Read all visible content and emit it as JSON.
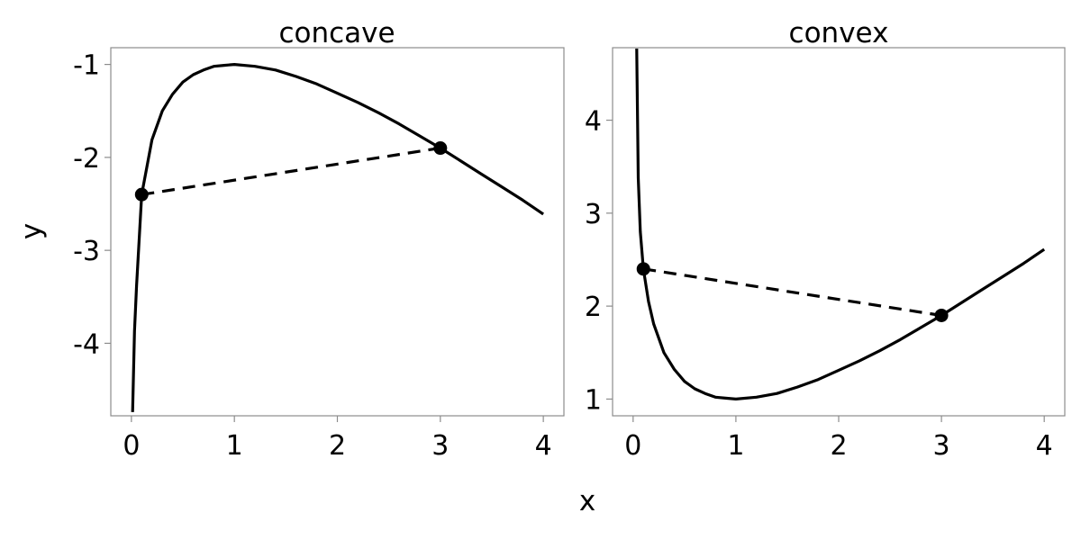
{
  "chart_data": [
    {
      "type": "line",
      "title": "concave",
      "xlim": [
        -0.2,
        4.2
      ],
      "ylim": [
        -4.78,
        -0.82
      ],
      "x_ticks": [
        0,
        1,
        2,
        3,
        4
      ],
      "y_ticks": [
        -4,
        -3,
        -2,
        -1
      ],
      "series": [
        {
          "style": "solid",
          "x": [
            0.012,
            0.03,
            0.05,
            0.1,
            0.2,
            0.3,
            0.4,
            0.5,
            0.6,
            0.7,
            0.8,
            0.9,
            1.0,
            1.2,
            1.4,
            1.6,
            1.8,
            2.0,
            2.2,
            2.4,
            2.6,
            2.8,
            3.0,
            3.2,
            3.4,
            3.6,
            3.8,
            4.0
          ],
          "y": [
            -4.74,
            -3.87,
            -3.38,
            -2.4,
            -1.81,
            -1.5,
            -1.32,
            -1.19,
            -1.11,
            -1.06,
            -1.02,
            -1.01,
            -1.0,
            -1.02,
            -1.06,
            -1.13,
            -1.21,
            -1.31,
            -1.41,
            -1.52,
            -1.64,
            -1.77,
            -1.9,
            -2.04,
            -2.18,
            -2.32,
            -2.46,
            -2.61
          ]
        },
        {
          "style": "dashed",
          "x": [
            0.1,
            3.0
          ],
          "y": [
            -2.4,
            -1.9
          ]
        }
      ],
      "points": {
        "x": [
          0.1,
          3.0
        ],
        "y": [
          -2.4,
          -1.9
        ]
      }
    },
    {
      "type": "line",
      "title": "convex",
      "xlim": [
        -0.2,
        4.2
      ],
      "ylim": [
        0.82,
        4.78
      ],
      "x_ticks": [
        0,
        1,
        2,
        3,
        4
      ],
      "y_ticks": [
        1,
        2,
        3,
        4
      ],
      "series": [
        {
          "style": "solid",
          "x": [
            0.035,
            0.05,
            0.07,
            0.1,
            0.15,
            0.2,
            0.3,
            0.4,
            0.5,
            0.6,
            0.7,
            0.8,
            0.9,
            1.0,
            1.2,
            1.4,
            1.6,
            1.8,
            2.0,
            2.2,
            2.4,
            2.6,
            2.8,
            3.0,
            3.2,
            3.4,
            3.6,
            3.8,
            4.0
          ],
          "y": [
            4.77,
            3.38,
            2.8,
            2.4,
            2.05,
            1.81,
            1.5,
            1.32,
            1.19,
            1.11,
            1.06,
            1.02,
            1.01,
            1.0,
            1.02,
            1.06,
            1.13,
            1.21,
            1.31,
            1.41,
            1.52,
            1.64,
            1.77,
            1.9,
            2.04,
            2.18,
            2.32,
            2.46,
            2.61
          ]
        },
        {
          "style": "dashed",
          "x": [
            0.1,
            3.0
          ],
          "y": [
            2.4,
            1.9
          ]
        }
      ],
      "points": {
        "x": [
          0.1,
          3.0
        ],
        "y": [
          2.4,
          1.9
        ]
      }
    }
  ],
  "shared_axes": {
    "xlabel": "x",
    "ylabel": "y"
  }
}
